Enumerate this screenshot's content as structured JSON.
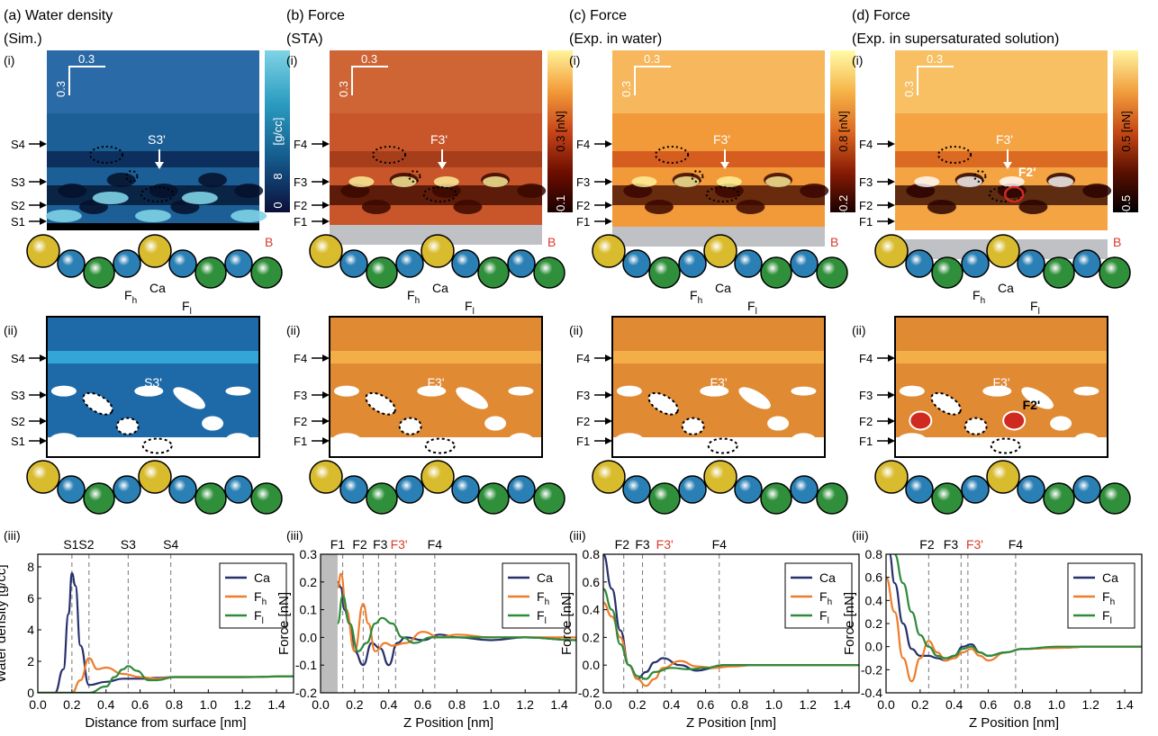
{
  "panels": [
    {
      "title": "(a) Water density",
      "subtitle": "(Sim.)",
      "kind": "sim",
      "scale_x": "0.3",
      "scale_y": "0.3",
      "colorbar": {
        "label": "[g/cc]",
        "max": "8",
        "min": "0",
        "colors": [
          "#0b0f3a",
          "#145a8c",
          "#2a9bbf",
          "#7fd3e6"
        ],
        "max_dark": false
      },
      "map_colors": {
        "bg": "#1b5f96",
        "mid": "#0c2a58",
        "dark": "#05102a",
        "bright": "#7fd3e6",
        "top": "#2a6aa6"
      },
      "levels": [
        "S4",
        "S3",
        "S2",
        "S1"
      ],
      "map_label": "S3'",
      "ends": [
        "A",
        "B"
      ],
      "ion_labels": {
        "fh": "F",
        "fh_sub": "h",
        "ca": "Ca",
        "fl": "F",
        "fl_sub": "l"
      },
      "roman": [
        "(i)",
        "(ii)",
        "(iii)"
      ],
      "schematic": {
        "bg": "#1e6aa8",
        "band": "#33a5d6",
        "label": "S3'",
        "extra_label": ""
      },
      "plot": {
        "xlabel": "Distance from surface [nm]",
        "ylabel": "Water density [g/cc]",
        "xlim": [
          0,
          1.5
        ],
        "ylim": [
          0,
          8.8
        ],
        "yticks": [
          0,
          2,
          4,
          6,
          8
        ],
        "ytick_labels": [
          "0",
          "2",
          "4",
          "6",
          "8"
        ],
        "xticks": [
          0.0,
          0.2,
          0.4,
          0.6,
          0.8,
          1.0,
          1.2,
          1.4
        ],
        "xtick_labels": [
          "0.0",
          "0.2",
          "0.4",
          "0.6",
          "0.8",
          "1.0",
          "1.2",
          "1.4"
        ],
        "vlines": [
          0.2,
          0.3,
          0.53,
          0.78
        ],
        "top_labels": [
          {
            "text": "S1S2",
            "x": 0.24,
            "red": false
          },
          {
            "text": "S3",
            "x": 0.53,
            "red": false
          },
          {
            "text": "S4",
            "x": 0.78,
            "red": false
          }
        ],
        "shade": null,
        "legend": [
          {
            "name": "Ca"
          },
          {
            "name": "F",
            "sub": "h"
          },
          {
            "name": "F",
            "sub": "l"
          }
        ]
      }
    },
    {
      "title": "(b) Force",
      "subtitle": "(STA)",
      "kind": "sta",
      "scale_x": "0.3",
      "scale_y": "0.3",
      "colorbar": {
        "label": "0.3 [nN]",
        "max": "",
        "min": "-0.1",
        "colors": [
          "#1a0000",
          "#6e0e00",
          "#c8461a",
          "#f39b3a",
          "#fff49a"
        ],
        "max_dark": true
      },
      "map_colors": {
        "bg": "#c8562a",
        "mid": "#a33c1a",
        "dark": "#3a0800",
        "bright": "#fff5a0",
        "top": "#cf6434"
      },
      "levels": [
        "F4",
        "F3",
        "F2",
        "F1"
      ],
      "map_label": "F3'",
      "ends": [
        "A",
        "B"
      ],
      "ion_labels": {
        "fh": "F",
        "fh_sub": "h",
        "ca": "Ca",
        "fl": "F",
        "fl_sub": "l"
      },
      "roman": [
        "(i)",
        "(ii)",
        "(iii)"
      ],
      "schematic": {
        "bg": "#e08a34",
        "band": "#f3ae48",
        "label": "F3'",
        "extra_label": ""
      },
      "plot": {
        "xlabel": "Z Position [nm]",
        "ylabel": "Force [nN]",
        "xlim": [
          0,
          1.5
        ],
        "ylim": [
          -0.2,
          0.3
        ],
        "yticks": [
          -0.2,
          -0.1,
          0.0,
          0.1,
          0.2,
          0.3
        ],
        "ytick_labels": [
          "-0.2",
          "-0.1",
          "0.0",
          "0.1",
          "0.2",
          "0.3"
        ],
        "xticks": [
          0.0,
          0.2,
          0.4,
          0.6,
          0.8,
          1.0,
          1.2,
          1.4
        ],
        "xtick_labels": [
          "0.0",
          "0.2",
          "0.4",
          "0.6",
          "0.8",
          "1.0",
          "1.2",
          "1.4"
        ],
        "vlines": [
          0.13,
          0.25,
          0.34,
          0.44,
          0.67
        ],
        "top_labels": [
          {
            "text": "F1",
            "x": 0.1,
            "red": false
          },
          {
            "text": "F2",
            "x": 0.23,
            "red": false
          },
          {
            "text": "F3",
            "x": 0.35,
            "red": false
          },
          {
            "text": "F3'",
            "x": 0.46,
            "red": true
          },
          {
            "text": "F4",
            "x": 0.67,
            "red": false
          }
        ],
        "shade": [
          0,
          0.1
        ],
        "legend": [
          {
            "name": "Ca"
          },
          {
            "name": "F",
            "sub": "h"
          },
          {
            "name": "F",
            "sub": "l"
          }
        ]
      }
    },
    {
      "title": "(c) Force",
      "subtitle": "(Exp. in water)",
      "kind": "exp",
      "scale_x": "0.3",
      "scale_y": "0.3",
      "colorbar": {
        "label": "0.8 [nN]",
        "max": "",
        "min": "-0.2",
        "colors": [
          "#1a0000",
          "#8a1c05",
          "#dd6a22",
          "#f6b549",
          "#fffca8"
        ],
        "max_dark": true
      },
      "map_colors": {
        "bg": "#f29a3a",
        "mid": "#d2561e",
        "dark": "#3a0600",
        "bright": "#fff59e",
        "top": "#f7b75c"
      },
      "levels": [
        "F4",
        "F3",
        "F2",
        "F1"
      ],
      "map_label": "F3'",
      "ends": [
        "A",
        "B"
      ],
      "ion_labels": {
        "fh": "F",
        "fh_sub": "h",
        "ca": "Ca",
        "fl": "F",
        "fl_sub": "l"
      },
      "roman": [
        "(i)",
        "(ii)",
        "(iii)"
      ],
      "schematic": {
        "bg": "#e08a34",
        "band": "#f3ae48",
        "label": "F3'",
        "extra_label": ""
      },
      "plot": {
        "xlabel": "Z Position [nm]",
        "ylabel": "Force [nN]",
        "xlim": [
          0,
          1.5
        ],
        "ylim": [
          -0.2,
          0.8
        ],
        "yticks": [
          -0.2,
          0.0,
          0.2,
          0.4,
          0.6,
          0.8
        ],
        "ytick_labels": [
          "-0.2",
          "0.0",
          "0.2",
          "0.4",
          "0.6",
          "0.8"
        ],
        "xticks": [
          0.0,
          0.2,
          0.4,
          0.6,
          0.8,
          1.0,
          1.2,
          1.4
        ],
        "xtick_labels": [
          "0.0",
          "0.2",
          "0.4",
          "0.6",
          "0.8",
          "1.0",
          "1.2",
          "1.4"
        ],
        "vlines": [
          0.12,
          0.23,
          0.36,
          0.68
        ],
        "top_labels": [
          {
            "text": "F2",
            "x": 0.11,
            "red": false
          },
          {
            "text": "F3",
            "x": 0.23,
            "red": false
          },
          {
            "text": "F3'",
            "x": 0.36,
            "red": true
          },
          {
            "text": "F4",
            "x": 0.68,
            "red": false
          }
        ],
        "shade": null,
        "legend": [
          {
            "name": "Ca"
          },
          {
            "name": "F",
            "sub": "h"
          },
          {
            "name": "F",
            "sub": "l"
          }
        ]
      }
    },
    {
      "title": "(d) Force",
      "subtitle": "(Exp. in supersaturated solution)",
      "kind": "sup",
      "scale_x": "0.3",
      "scale_y": "0.3",
      "colorbar": {
        "label": "0.5 [nN]",
        "max": "",
        "min": "-0.5",
        "colors": [
          "#000000",
          "#5a1000",
          "#c84a16",
          "#f2a040",
          "#fff4a0"
        ],
        "max_dark": true
      },
      "map_colors": {
        "bg": "#f5a444",
        "mid": "#d8641f",
        "dark": "#2a0400",
        "bright": "#ffffff",
        "top": "#f8c063"
      },
      "levels": [
        "F4",
        "F3",
        "F2",
        "F1"
      ],
      "map_label": "F3'",
      "ends": [
        "A",
        "B"
      ],
      "ion_labels": {
        "fh": "F",
        "fh_sub": "h",
        "ca": "Ca",
        "fl": "F",
        "fl_sub": "l"
      },
      "roman": [
        "(i)",
        "(ii)",
        "(iii)"
      ],
      "schematic": {
        "bg": "#e08a34",
        "band": "#f3ae48",
        "label": "F3'",
        "extra_label": "F2'"
      },
      "map_extra_label": "F2'",
      "plot": {
        "xlabel": "Z Position [nm]",
        "ylabel": "Force [nN]",
        "xlim": [
          0,
          1.5
        ],
        "ylim": [
          -0.4,
          0.8
        ],
        "yticks": [
          -0.4,
          -0.2,
          0.0,
          0.2,
          0.4,
          0.6,
          0.8
        ],
        "ytick_labels": [
          "-0.4",
          "-0.2",
          "0.0",
          "0.2",
          "0.4",
          "0.6",
          "0.8"
        ],
        "xticks": [
          0.0,
          0.2,
          0.4,
          0.6,
          0.8,
          1.0,
          1.2,
          1.4
        ],
        "xtick_labels": [
          "0.0",
          "0.2",
          "0.4",
          "0.6",
          "0.8",
          "1.0",
          "1.2",
          "1.4"
        ],
        "vlines": [
          0.25,
          0.44,
          0.48,
          0.76
        ],
        "top_labels": [
          {
            "text": "F2",
            "x": 0.24,
            "red": false
          },
          {
            "text": "F3",
            "x": 0.38,
            "red": false
          },
          {
            "text": "F3'",
            "x": 0.52,
            "red": true
          },
          {
            "text": "F4",
            "x": 0.76,
            "red": false
          }
        ],
        "shade": null,
        "legend": [
          {
            "name": "Ca"
          },
          {
            "name": "F",
            "sub": "h"
          },
          {
            "name": "F",
            "sub": "l"
          }
        ]
      }
    }
  ],
  "colors": {
    "ca_line": "#27306b",
    "fh_line": "#ee7d2b",
    "fl_line": "#2e8b3a",
    "atom_yellow": "#d9bb2e",
    "atom_blue": "#2a7fb4",
    "atom_green": "#2f8f3a",
    "red_label": "#d83a2a",
    "grey_surface": "#bfc1c4",
    "red_circle": "#d02a20"
  },
  "chart_data": [
    {
      "type": "line",
      "xlabel": "Distance from surface [nm]",
      "ylabel": "Water density [g/cc]",
      "xlim": [
        0,
        1.5
      ],
      "ylim": [
        0,
        8.8
      ],
      "series": [
        {
          "name": "Ca",
          "x": [
            0.0,
            0.1,
            0.15,
            0.18,
            0.2,
            0.22,
            0.25,
            0.3,
            0.4,
            0.5,
            0.6,
            0.7,
            0.8,
            1.0,
            1.2,
            1.5
          ],
          "y": [
            0,
            0,
            1.5,
            5.0,
            7.6,
            6.8,
            3.0,
            0.5,
            0.7,
            0.9,
            0.9,
            0.95,
            1.0,
            1.0,
            1.0,
            1.05
          ]
        },
        {
          "name": "Fh",
          "x": [
            0.0,
            0.2,
            0.25,
            0.3,
            0.35,
            0.4,
            0.5,
            0.6,
            0.7,
            0.8,
            1.0,
            1.2,
            1.5
          ],
          "y": [
            0,
            0,
            0.8,
            2.2,
            1.5,
            1.6,
            1.2,
            1.0,
            0.9,
            1.0,
            1.0,
            1.0,
            1.05
          ]
        },
        {
          "name": "Fl",
          "x": [
            0.0,
            0.3,
            0.4,
            0.45,
            0.5,
            0.53,
            0.58,
            0.65,
            0.7,
            0.8,
            1.0,
            1.2,
            1.5
          ],
          "y": [
            0,
            0,
            0.4,
            1.0,
            1.5,
            1.7,
            1.4,
            0.8,
            0.8,
            1.0,
            1.0,
            1.0,
            1.05
          ]
        }
      ]
    },
    {
      "type": "line",
      "xlabel": "Z Position [nm]",
      "ylabel": "Force [nN]",
      "xlim": [
        0,
        1.5
      ],
      "ylim": [
        -0.2,
        0.3
      ],
      "series": [
        {
          "name": "Ca",
          "x": [
            0.1,
            0.12,
            0.14,
            0.17,
            0.2,
            0.25,
            0.3,
            0.35,
            0.4,
            0.45,
            0.5,
            0.6,
            0.7,
            0.8,
            1.0,
            1.2,
            1.5
          ],
          "y": [
            0.2,
            0.18,
            0.1,
            0.05,
            -0.05,
            -0.1,
            -0.02,
            -0.04,
            -0.1,
            -0.02,
            0.0,
            -0.01,
            0.01,
            0.0,
            -0.01,
            0.0,
            -0.01
          ]
        },
        {
          "name": "Fh",
          "x": [
            0.1,
            0.12,
            0.15,
            0.2,
            0.25,
            0.28,
            0.32,
            0.38,
            0.42,
            0.5,
            0.6,
            0.7,
            0.8,
            1.0,
            1.2,
            1.5
          ],
          "y": [
            0.18,
            0.23,
            0.1,
            -0.05,
            0.12,
            0.05,
            -0.05,
            -0.02,
            -0.03,
            -0.02,
            0.02,
            0.0,
            0.01,
            0.0,
            0.0,
            0.0
          ]
        },
        {
          "name": "Fl",
          "x": [
            0.1,
            0.13,
            0.17,
            0.22,
            0.27,
            0.32,
            0.36,
            0.42,
            0.48,
            0.55,
            0.65,
            0.8,
            1.0,
            1.2,
            1.5
          ],
          "y": [
            0.05,
            0.15,
            0.05,
            -0.05,
            -0.02,
            0.05,
            0.07,
            0.05,
            0.0,
            -0.02,
            0.0,
            0.0,
            0.0,
            0.0,
            -0.01
          ]
        }
      ]
    },
    {
      "type": "line",
      "xlabel": "Z Position [nm]",
      "ylabel": "Force [nN]",
      "xlim": [
        0,
        1.5
      ],
      "ylim": [
        -0.2,
        0.8
      ],
      "series": [
        {
          "name": "Ca",
          "x": [
            0.0,
            0.05,
            0.1,
            0.15,
            0.2,
            0.25,
            0.3,
            0.35,
            0.45,
            0.55,
            0.65,
            0.7,
            0.8,
            1.0,
            1.2,
            1.5
          ],
          "y": [
            0.8,
            0.55,
            0.25,
            0.0,
            -0.1,
            -0.05,
            0.02,
            0.05,
            0.0,
            -0.04,
            -0.02,
            0.0,
            0.0,
            0.0,
            0.0,
            0.0
          ]
        },
        {
          "name": "Fh",
          "x": [
            0.0,
            0.05,
            0.1,
            0.15,
            0.2,
            0.25,
            0.3,
            0.35,
            0.45,
            0.55,
            0.65,
            0.75,
            0.9,
            1.1,
            1.3,
            1.5
          ],
          "y": [
            0.45,
            0.35,
            0.2,
            0.0,
            -0.1,
            -0.15,
            -0.1,
            -0.02,
            0.03,
            -0.01,
            -0.02,
            -0.01,
            0.0,
            0.0,
            0.0,
            0.0
          ]
        },
        {
          "name": "Fl",
          "x": [
            0.0,
            0.05,
            0.1,
            0.15,
            0.2,
            0.25,
            0.3,
            0.4,
            0.5,
            0.6,
            0.7,
            0.9,
            1.1,
            1.3,
            1.5
          ],
          "y": [
            0.55,
            0.4,
            0.15,
            0.0,
            -0.08,
            -0.1,
            -0.05,
            -0.02,
            -0.03,
            -0.02,
            0.0,
            0.0,
            0.0,
            0.0,
            0.0
          ]
        }
      ]
    },
    {
      "type": "line",
      "xlabel": "Z Position [nm]",
      "ylabel": "Force [nN]",
      "xlim": [
        0,
        1.5
      ],
      "ylim": [
        -0.4,
        0.8
      ],
      "series": [
        {
          "name": "Ca",
          "x": [
            0.02,
            0.05,
            0.1,
            0.15,
            0.2,
            0.25,
            0.3,
            0.35,
            0.4,
            0.45,
            0.5,
            0.55,
            0.6,
            0.7,
            0.8,
            1.0,
            1.2,
            1.5
          ],
          "y": [
            0.8,
            0.55,
            0.2,
            -0.02,
            -0.08,
            -0.08,
            -0.1,
            -0.12,
            -0.08,
            0.0,
            0.02,
            -0.05,
            -0.08,
            -0.05,
            -0.02,
            -0.01,
            0.0,
            0.0
          ]
        },
        {
          "name": "Fh",
          "x": [
            0.0,
            0.05,
            0.1,
            0.15,
            0.2,
            0.25,
            0.3,
            0.35,
            0.4,
            0.45,
            0.5,
            0.55,
            0.6,
            0.7,
            0.8,
            1.0,
            1.2,
            1.5
          ],
          "y": [
            0.6,
            0.3,
            -0.1,
            -0.3,
            -0.1,
            0.05,
            -0.05,
            -0.12,
            -0.1,
            -0.05,
            -0.02,
            -0.08,
            -0.12,
            -0.05,
            -0.02,
            -0.01,
            0.0,
            0.0
          ]
        },
        {
          "name": "Fl",
          "x": [
            0.05,
            0.1,
            0.15,
            0.2,
            0.25,
            0.3,
            0.35,
            0.4,
            0.45,
            0.5,
            0.55,
            0.6,
            0.7,
            0.8,
            1.0,
            1.2,
            1.5
          ],
          "y": [
            0.8,
            0.55,
            0.3,
            0.1,
            0.0,
            -0.08,
            -0.1,
            -0.08,
            -0.02,
            0.0,
            -0.05,
            -0.08,
            -0.05,
            -0.02,
            0.0,
            0.0,
            0.0
          ]
        }
      ]
    }
  ]
}
